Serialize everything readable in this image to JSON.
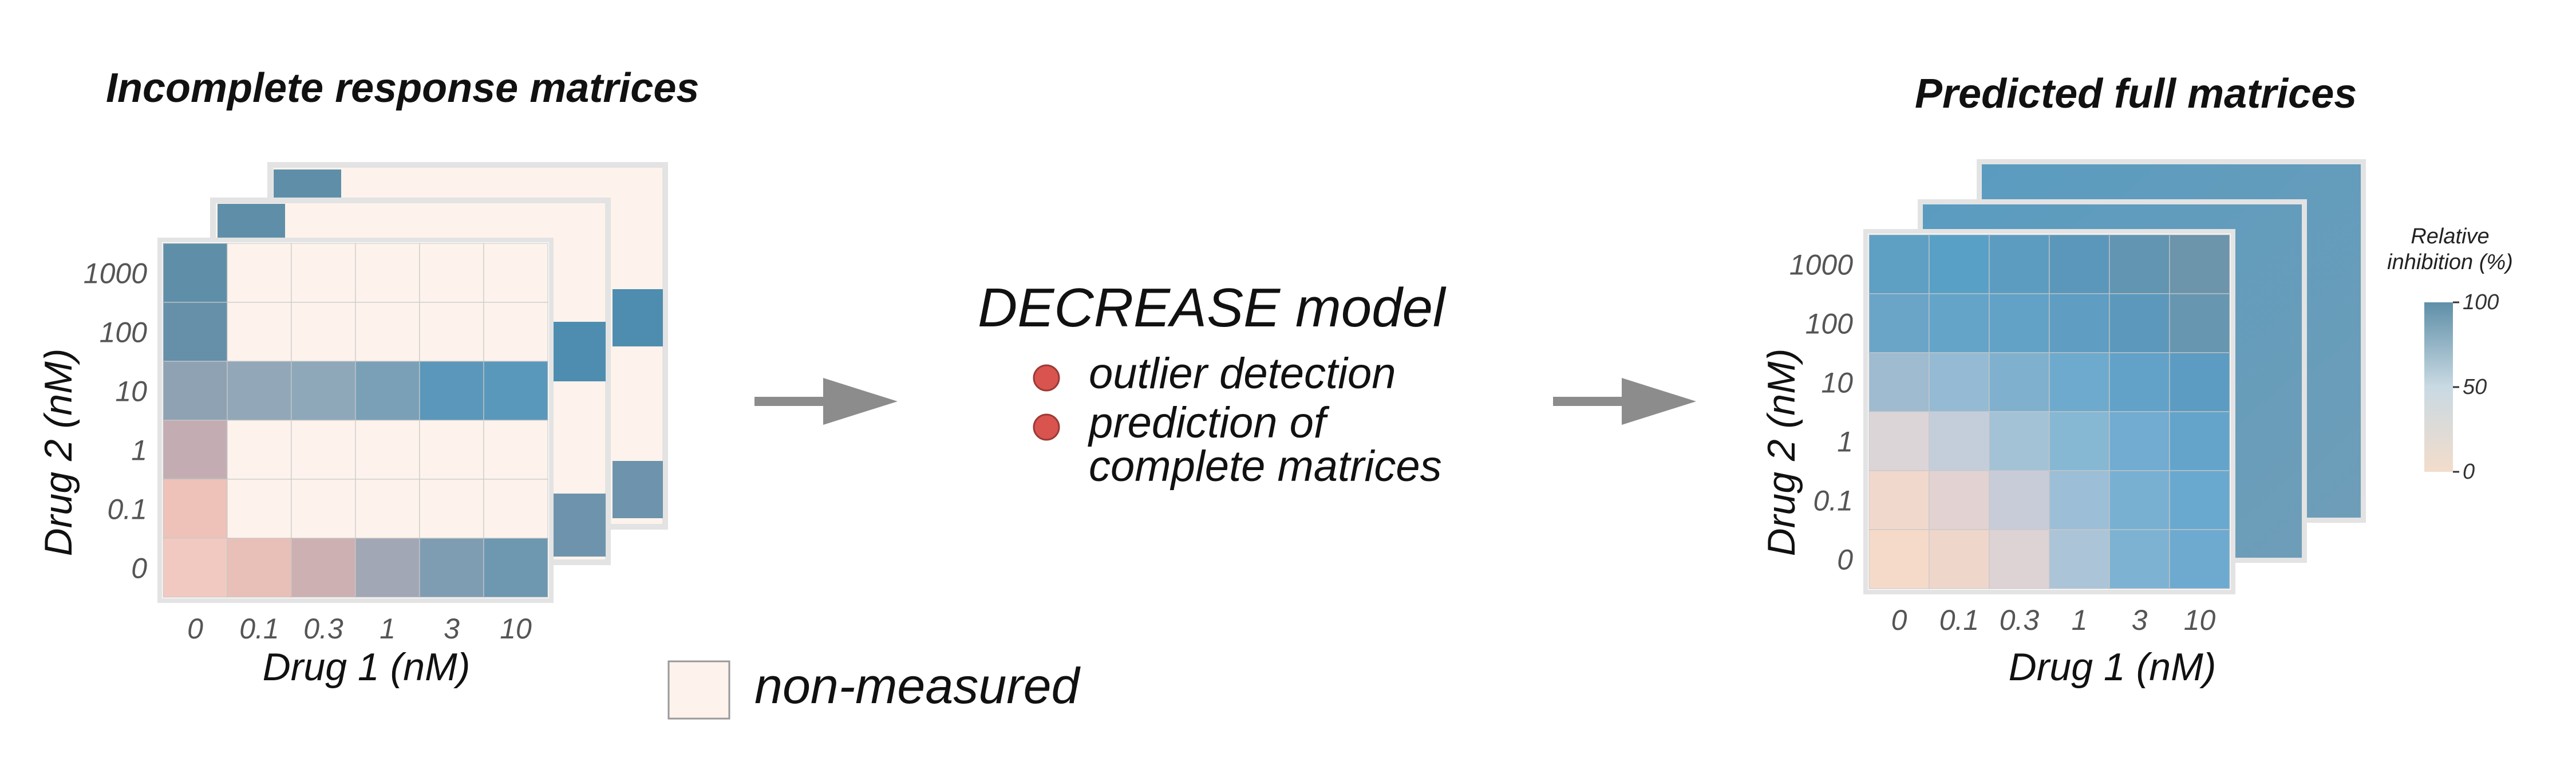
{
  "left_panel": {
    "title": "Incomplete response matrices",
    "xlabel": "Drug 1 (nM)",
    "ylabel": "Drug 2 (nM)",
    "x_ticks": [
      "0",
      "0.1",
      "0.3",
      "1",
      "3",
      "10"
    ],
    "y_ticks": [
      "1000",
      "100",
      "10",
      "1",
      "0.1",
      "0"
    ]
  },
  "right_panel": {
    "title": "Predicted full matrices",
    "xlabel": "Drug 1 (nM)",
    "ylabel": "Drug 2 (nM)",
    "x_ticks": [
      "0",
      "0.1",
      "0.3",
      "1",
      "3",
      "10"
    ],
    "y_ticks": [
      "1000",
      "100",
      "10",
      "1",
      "0.1",
      "0"
    ]
  },
  "colorbar": {
    "title_line1": "Relative",
    "title_line2": "inhibition (%)",
    "ticks": [
      "100",
      "50",
      "0"
    ],
    "colors": {
      "high": "#5f8fa8",
      "mid": "#c9dae3",
      "low": "#f3dccb"
    }
  },
  "model": {
    "title": "DECREASE model",
    "bullets": [
      "outlier detection",
      "prediction of",
      "complete matrices"
    ],
    "bullet_color": "#d9534f"
  },
  "legend": {
    "label": "non-measured",
    "swatch_color": "#fdf3ec"
  },
  "arrow_color": "#8c8c8c"
}
